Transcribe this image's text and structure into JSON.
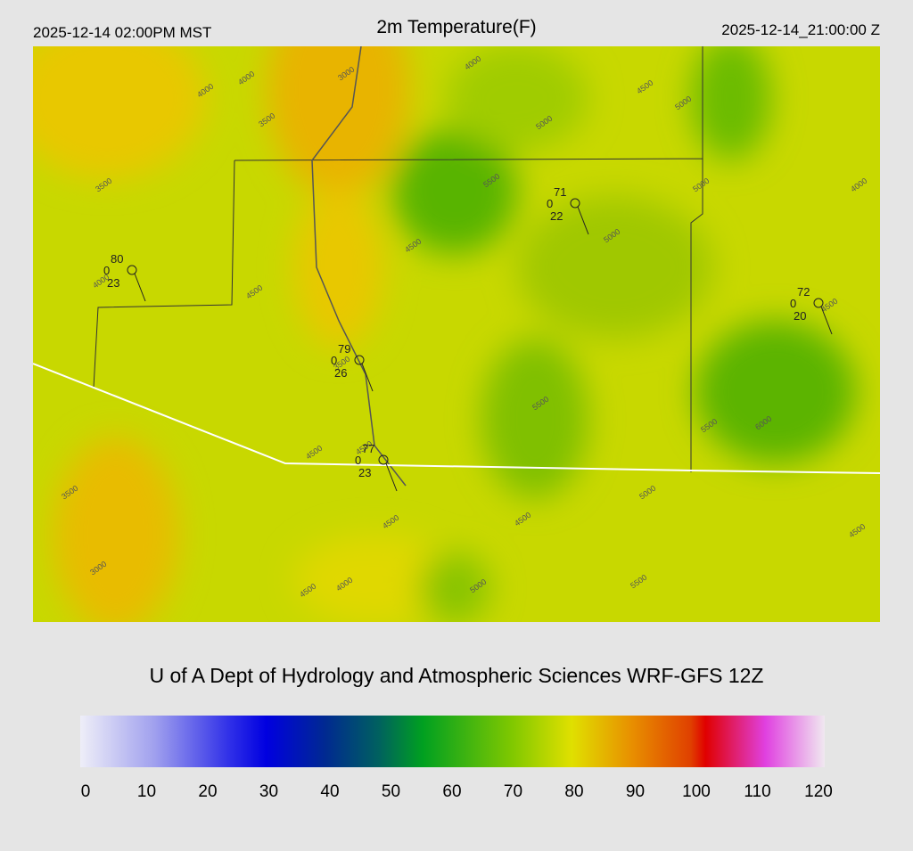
{
  "header": {
    "left": "2025-12-14 02:00PM MST",
    "title": "2m Temperature(F)",
    "right": "2025-12-14_21:00:00 Z"
  },
  "contour_labels": [
    "4000",
    "4000",
    "3000",
    "3500",
    "4000",
    "4500",
    "5000",
    "5000",
    "3500",
    "5500",
    "5000",
    "5000",
    "4500",
    "4000",
    "4000",
    "4500",
    "4500",
    "5500",
    "5500",
    "6000",
    "4500",
    "4500",
    "3500",
    "5000",
    "4500",
    "4500",
    "4500",
    "3000",
    "4500",
    "4000",
    "5000",
    "5500",
    "3500"
  ],
  "stations": [
    {
      "temp": "80",
      "wind": "0",
      "dew": "23"
    },
    {
      "temp": "71",
      "wind": "0",
      "dew": "22"
    },
    {
      "temp": "72",
      "wind": "0",
      "dew": "20"
    },
    {
      "temp": "79",
      "wind": "0",
      "dew": "26"
    },
    {
      "temp": "77",
      "wind": "0",
      "dew": "23"
    }
  ],
  "credit": "U of A Dept of Hydrology and Atmospheric Sciences WRF-GFS 12Z",
  "colorbar": {
    "ticks": [
      0,
      10,
      20,
      30,
      40,
      50,
      60,
      70,
      80,
      90,
      100,
      110,
      120
    ]
  }
}
